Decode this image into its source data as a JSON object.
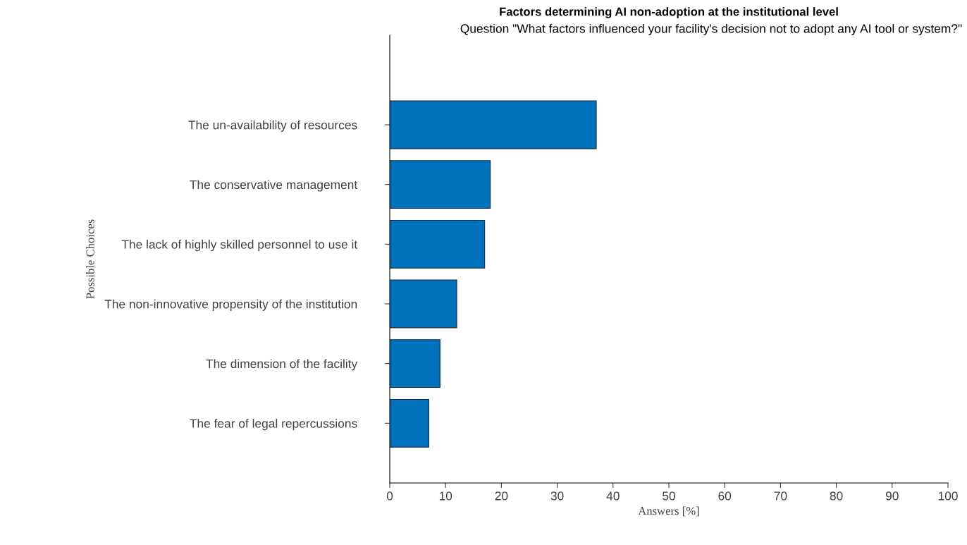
{
  "chart_data": {
    "type": "bar",
    "orientation": "horizontal",
    "title": "Factors determining AI non-adoption at the institutional level",
    "subtitle": "Question \"What factors influenced your facility's decision not to adopt any AI tool or system?\"",
    "xlabel": "Answers [%]",
    "ylabel": "Possible Choices",
    "categories": [
      "The un-availability of resources",
      "The conservative management",
      "The lack of highly skilled personnel to use it",
      "The non-innovative propensity of the institution",
      "The dimension of the facility",
      "The fear of legal repercussions"
    ],
    "values": [
      37,
      18,
      17,
      12,
      9,
      7
    ],
    "color": "#0072bd",
    "xlim": [
      0,
      100
    ],
    "xticks": [
      0,
      10,
      20,
      30,
      40,
      50,
      60,
      70,
      80,
      90,
      100
    ],
    "grid": false,
    "legend": false
  }
}
